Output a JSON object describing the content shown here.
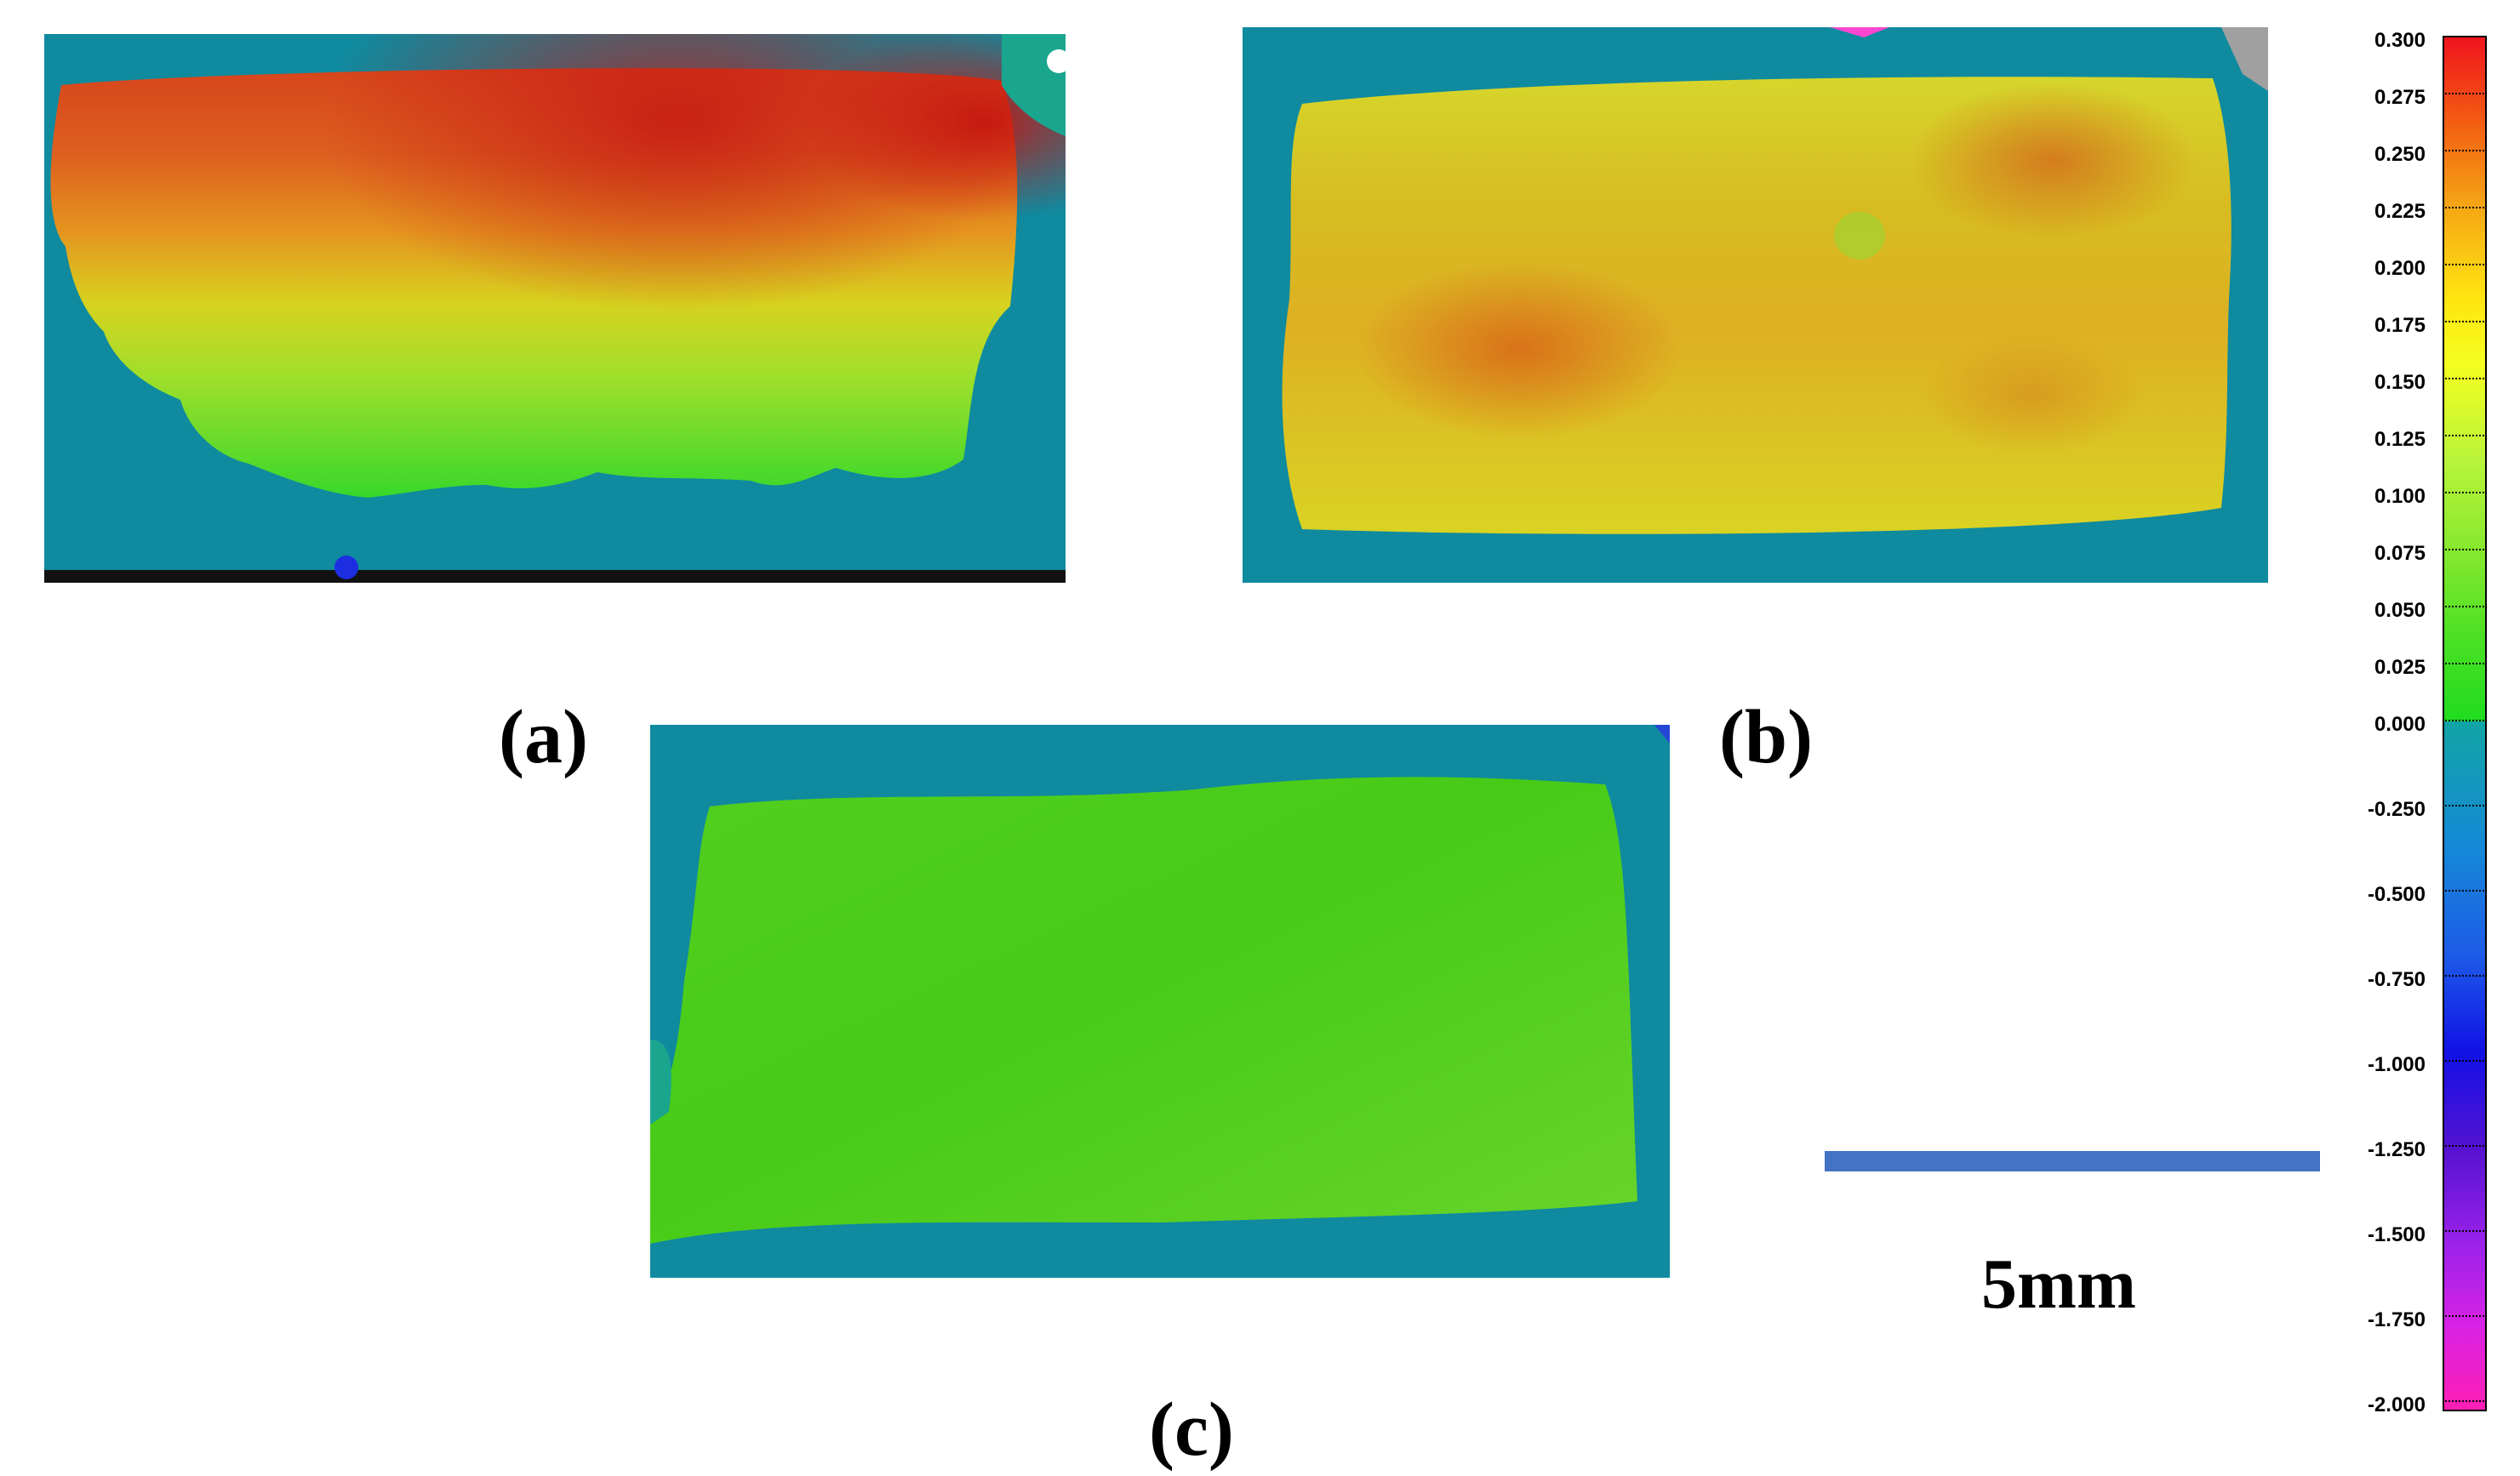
{
  "panels": [
    {
      "label": "(a)"
    },
    {
      "label": "(b)"
    },
    {
      "label": "(c)"
    }
  ],
  "scale_bar": {
    "label": "5mm"
  },
  "colorbar": {
    "labels": [
      "0.300",
      "0.275",
      "0.250",
      "0.225",
      "0.200",
      "0.175",
      "0.150",
      "0.125",
      "0.100",
      "0.075",
      "0.050",
      "0.025",
      "0.000",
      "-0.250",
      "-0.500",
      "-0.750",
      "-1.000",
      "-1.250",
      "-1.500",
      "-1.750",
      "-2.000"
    ]
  },
  "colors": {
    "base_teal": "#0f8a9f",
    "scale_bar": "#4472c4"
  }
}
